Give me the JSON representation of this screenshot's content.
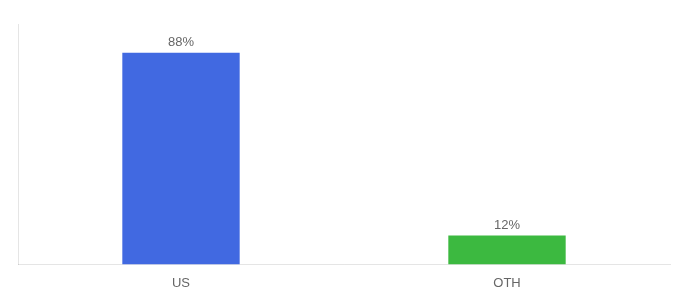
{
  "chart_data": {
    "type": "bar",
    "categories": [
      "US",
      "OTH"
    ],
    "values": [
      88,
      12
    ],
    "colors": [
      "#4169E1",
      "#3CB940"
    ],
    "value_labels": [
      "88%",
      "12%"
    ],
    "data_labels": true,
    "ylim": [
      0,
      100
    ],
    "tick_labels": "x",
    "grid": false
  }
}
